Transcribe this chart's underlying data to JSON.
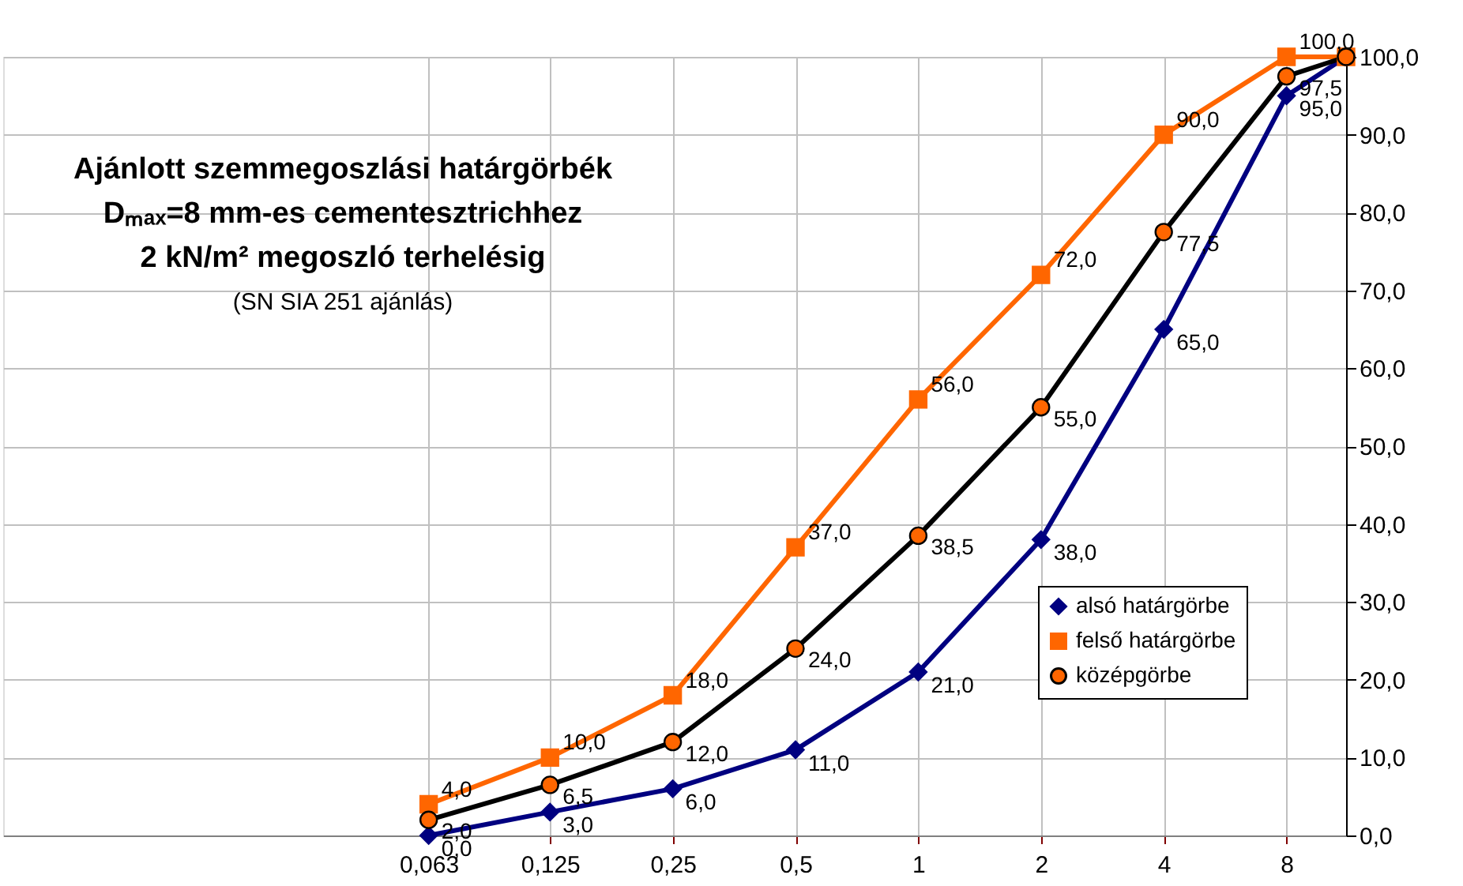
{
  "chart_data": {
    "type": "line",
    "title": "Ajánlott szemmegoszlási határgörbék\nDₘₐₓ=8 mm-es cementesztrichhez\n2 kN/m² megoszló terhelésig",
    "subtitle": "(SN SIA 251 ajánlás)",
    "x": [
      0.063,
      0.125,
      0.25,
      0.5,
      1,
      2,
      4,
      8,
      11.2
    ],
    "series": [
      {
        "name": "alsó határgörbe",
        "color": "#000080",
        "marker": "diamond",
        "values": [
          0,
          3,
          6,
          11,
          21,
          38,
          65,
          95,
          100
        ],
        "value_labels": [
          "0,0",
          "3,0",
          "6,0",
          "11,0",
          "21,0",
          "38,0",
          "65,0",
          "95,0",
          null
        ]
      },
      {
        "name": "felső határgörbe",
        "color": "#ff6600",
        "marker": "square",
        "values": [
          4,
          10,
          18,
          37,
          56,
          72,
          90,
          100,
          100
        ],
        "value_labels": [
          "4,0",
          "10,0",
          "18,0",
          "37,0",
          "56,0",
          "72,0",
          "90,0",
          "100,0",
          null
        ]
      },
      {
        "name": "középgörbe",
        "color": "#000000",
        "marker": "circle",
        "values": [
          2,
          6.5,
          12,
          24,
          38.5,
          55,
          77.5,
          97.5,
          100
        ],
        "value_labels": [
          "2,0",
          "6,5",
          "12,0",
          "24,0",
          "38,5",
          "55,0",
          "77,5",
          "97,5",
          null
        ]
      }
    ],
    "log": "x",
    "xlim": [
      0.0057,
      11.2
    ],
    "xticks": [
      {
        "value": 0.063,
        "label": "0,063"
      },
      {
        "value": 0.125,
        "label": "0,125"
      },
      {
        "value": 0.25,
        "label": "0,25"
      },
      {
        "value": 0.5,
        "label": "0,5"
      },
      1,
      2,
      4,
      8
    ],
    "ylim": [
      0,
      100
    ],
    "yticks": [
      {
        "value": 0,
        "label": "0,0"
      },
      {
        "value": 10,
        "label": "10,0"
      },
      {
        "value": 20,
        "label": "20,0"
      },
      {
        "value": 30,
        "label": "30,0"
      },
      {
        "value": 40,
        "label": "40,0"
      },
      {
        "value": 50,
        "label": "50,0"
      },
      {
        "value": 60,
        "label": "60,0"
      },
      {
        "value": 70,
        "label": "70,0"
      },
      {
        "value": 80,
        "label": "80,0"
      },
      {
        "value": 90,
        "label": "90,0"
      },
      {
        "value": 100,
        "label": "100,0"
      }
    ],
    "grid": true,
    "legend": "bottom right"
  }
}
